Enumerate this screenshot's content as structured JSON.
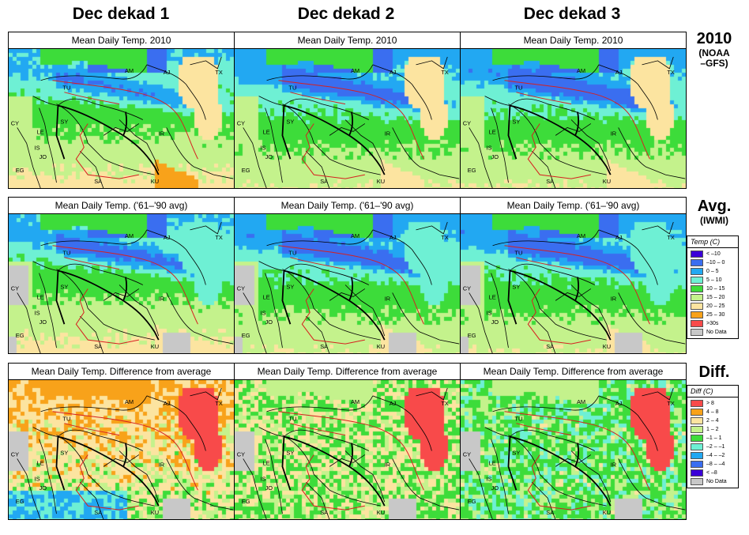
{
  "columns": [
    "Dec dekad 1",
    "Dec dekad 2",
    "Dec dekad 3"
  ],
  "rows": [
    {
      "id": "r2010",
      "label": "2010",
      "sublabel": "(NOAA\n–GFS)",
      "panel_title": "Mean Daily Temp. 2010"
    },
    {
      "id": "ravg",
      "label": "Avg.",
      "sublabel": "(IWMI)",
      "panel_title": "Mean Daily Temp. ('61–'90 avg)"
    },
    {
      "id": "rdiff",
      "label": "Diff.",
      "sublabel": "",
      "panel_title": "Mean Daily Temp. Difference from average"
    }
  ],
  "country_labels": [
    "AM",
    "AJ",
    "TX",
    "TU",
    "SY",
    "IR",
    "CY",
    "LE",
    "IS",
    "JO",
    "EG",
    "SA",
    "KU"
  ],
  "legend_temp": {
    "title": "Temp (C)",
    "items": [
      {
        "label": "< –10",
        "color": "#3a00d8"
      },
      {
        "label": "–10 – 0",
        "color": "#3a6ef0"
      },
      {
        "label": "0 – 5",
        "color": "#22a8f2"
      },
      {
        "label": "5 – 10",
        "color": "#6ef0d4"
      },
      {
        "label": "10 – 15",
        "color": "#3ddc3a"
      },
      {
        "label": "15 – 20",
        "color": "#c4f28c"
      },
      {
        "label": "20 – 25",
        "color": "#fce4a0"
      },
      {
        "label": "25 – 30",
        "color": "#f8a21a"
      },
      {
        "label": ">30s",
        "color": "#f84a4a"
      },
      {
        "label": "No Data",
        "color": "#c8c8c8"
      }
    ]
  },
  "legend_diff": {
    "title": "Diff (C)",
    "items": [
      {
        "label": "> 8",
        "color": "#f84a4a"
      },
      {
        "label": "4 – 8",
        "color": "#f8a21a"
      },
      {
        "label": "2 – 4",
        "color": "#fce4a0"
      },
      {
        "label": "1 – 2",
        "color": "#c4f28c"
      },
      {
        "label": "–1 – 1",
        "color": "#3ddc3a"
      },
      {
        "label": "–2 – –1",
        "color": "#6ef0d4"
      },
      {
        "label": "–4 – –2",
        "color": "#22a8f2"
      },
      {
        "label": "–8 – –4",
        "color": "#3a6ef0"
      },
      {
        "label": "< –8",
        "color": "#3a00d8"
      },
      {
        "label": "No Data",
        "color": "#c8c8c8"
      }
    ]
  }
}
